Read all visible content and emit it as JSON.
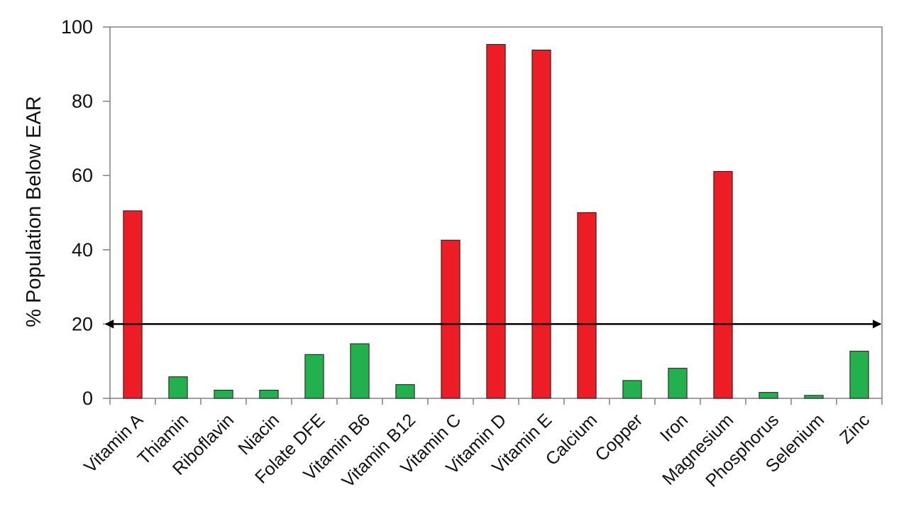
{
  "chart_data": {
    "type": "bar",
    "title": "",
    "xlabel": "",
    "ylabel": "% Population Below EAR",
    "ylim": [
      0,
      100
    ],
    "yticks": [
      0,
      20,
      40,
      60,
      80,
      100
    ],
    "grid": false,
    "legend": "none",
    "categories": [
      "Vitamin A",
      "Thiamin",
      "Riboflavin",
      "Niacin",
      "Folate DFE",
      "Vitamin B6",
      "Vitamin B12",
      "Vitamin C",
      "Vitamin D",
      "Vitamin E",
      "Calcium",
      "Copper",
      "Iron",
      "Magnesium",
      "Phosphorus",
      "Selenium",
      "Zinc"
    ],
    "values": [
      50.5,
      5.8,
      2.2,
      2.2,
      11.8,
      14.7,
      3.7,
      42.6,
      95.3,
      93.8,
      50.0,
      4.8,
      8.1,
      61.1,
      1.6,
      0.8,
      12.7
    ],
    "bar_colors": [
      "#ee1c25",
      "#22b14c",
      "#22b14c",
      "#22b14c",
      "#22b14c",
      "#22b14c",
      "#22b14c",
      "#ee1c25",
      "#ee1c25",
      "#ee1c25",
      "#ee1c25",
      "#22b14c",
      "#22b14c",
      "#ee1c25",
      "#22b14c",
      "#22b14c",
      "#22b14c"
    ],
    "colors": {
      "above_threshold": "#ee1c25",
      "below_threshold": "#22b14c",
      "axis": "#808080",
      "threshold_line": "#000000"
    },
    "threshold": {
      "value": 20,
      "style": "double-arrow"
    }
  }
}
